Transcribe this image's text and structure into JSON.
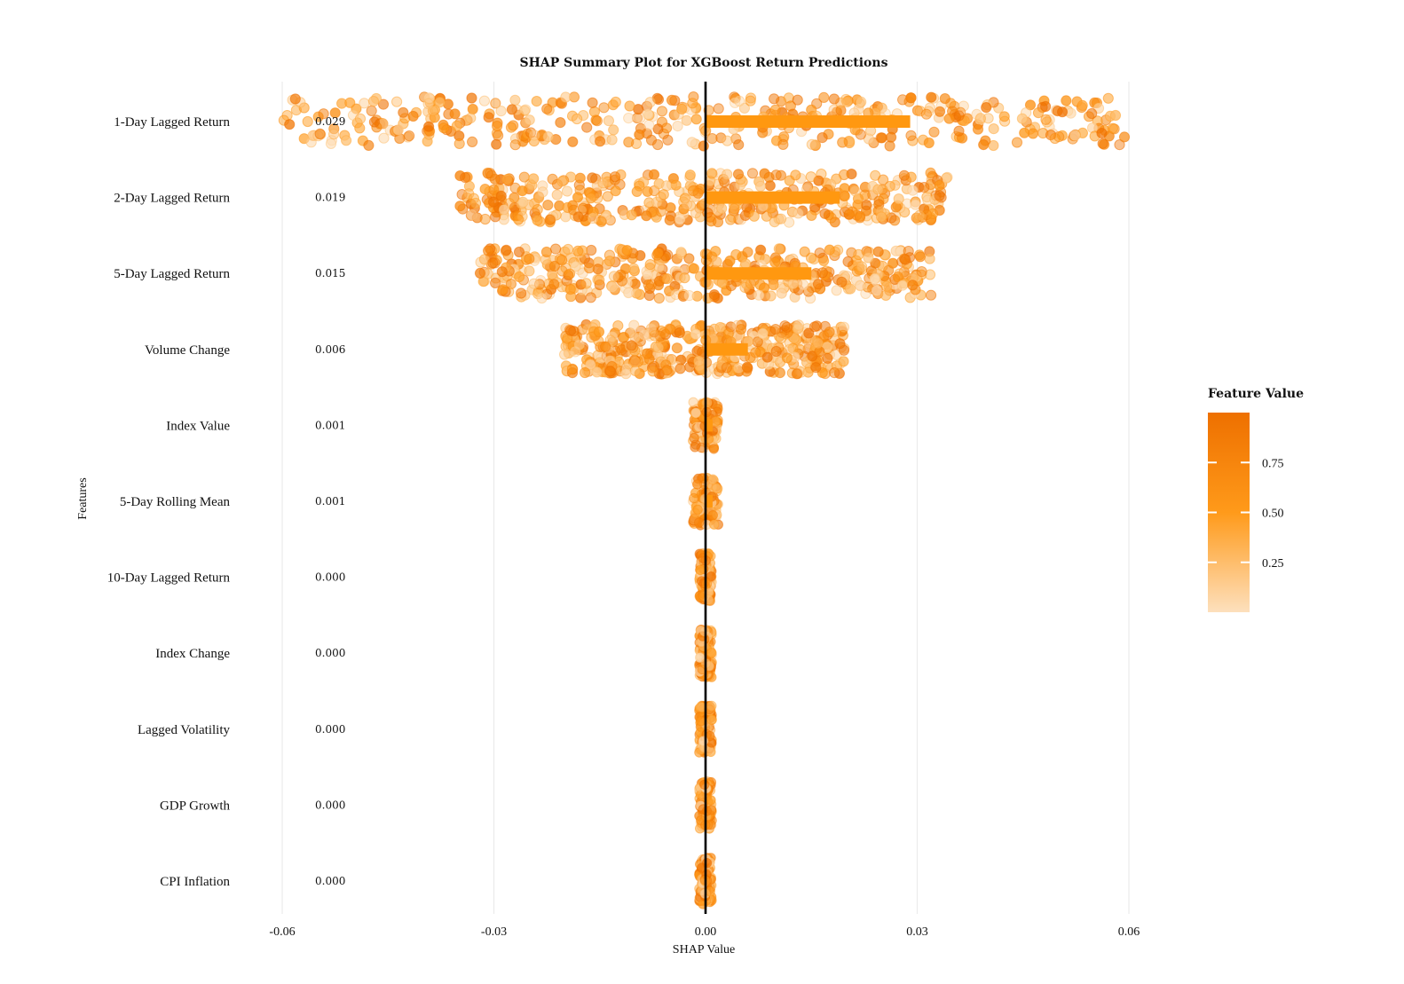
{
  "chart_data": {
    "type": "scatter",
    "title": "SHAP Summary Plot for XGBoost Return Predictions",
    "xlabel": "SHAP Value",
    "ylabel": "Features",
    "xlim": [
      -0.06,
      0.06
    ],
    "xticks": [
      -0.06,
      -0.03,
      0.0,
      0.03,
      0.06
    ],
    "xtick_labels": [
      "-0.06",
      "-0.03",
      "0.00",
      "0.03",
      "0.06"
    ],
    "grid": true,
    "reference_line_x": 0.0,
    "features": [
      {
        "name": "1-Day Lagged Return",
        "mean_abs_shap": 0.029,
        "mean_label": "0.029",
        "shap_range": [
          -0.06,
          0.06
        ]
      },
      {
        "name": "2-Day Lagged Return",
        "mean_abs_shap": 0.019,
        "mean_label": "0.019",
        "shap_range": [
          -0.035,
          0.035
        ]
      },
      {
        "name": "5-Day Lagged Return",
        "mean_abs_shap": 0.015,
        "mean_label": "0.015",
        "shap_range": [
          -0.032,
          0.032
        ]
      },
      {
        "name": "Volume Change",
        "mean_abs_shap": 0.006,
        "mean_label": "0.006",
        "shap_range": [
          -0.02,
          0.02
        ]
      },
      {
        "name": "Index Value",
        "mean_abs_shap": 0.001,
        "mean_label": "0.001",
        "shap_range": [
          -0.0018,
          0.0018
        ]
      },
      {
        "name": "5-Day Rolling Mean",
        "mean_abs_shap": 0.001,
        "mean_label": "0.001",
        "shap_range": [
          -0.0018,
          0.0018
        ]
      },
      {
        "name": "10-Day Lagged Return",
        "mean_abs_shap": 0.0,
        "mean_label": "0.000",
        "shap_range": [
          -0.0009,
          0.0009
        ]
      },
      {
        "name": "Index Change",
        "mean_abs_shap": 0.0,
        "mean_label": "0.000",
        "shap_range": [
          -0.0009,
          0.0009
        ]
      },
      {
        "name": "Lagged Volatility",
        "mean_abs_shap": 0.0,
        "mean_label": "0.000",
        "shap_range": [
          -0.0009,
          0.0009
        ]
      },
      {
        "name": "GDP Growth",
        "mean_abs_shap": 0.0,
        "mean_label": "0.000",
        "shap_range": [
          -0.0009,
          0.0009
        ]
      },
      {
        "name": "CPI Inflation",
        "mean_abs_shap": 0.0,
        "mean_label": "0.000",
        "shap_range": [
          -0.0009,
          0.0009
        ]
      }
    ],
    "points_per_feature": 420,
    "legend": {
      "title": "Feature Value",
      "ticks": [
        0.25,
        0.5,
        0.75
      ],
      "tick_labels": [
        "0.25",
        "0.50",
        "0.75"
      ],
      "range": [
        0,
        1
      ],
      "placement": "right",
      "color_low": "#fde0bd",
      "color_mid": "#ff9a1a",
      "color_high": "#ee7000"
    },
    "colors": {
      "bar": "#ff9810",
      "zero_line": "#000000",
      "grid": "#ebebeb"
    }
  }
}
